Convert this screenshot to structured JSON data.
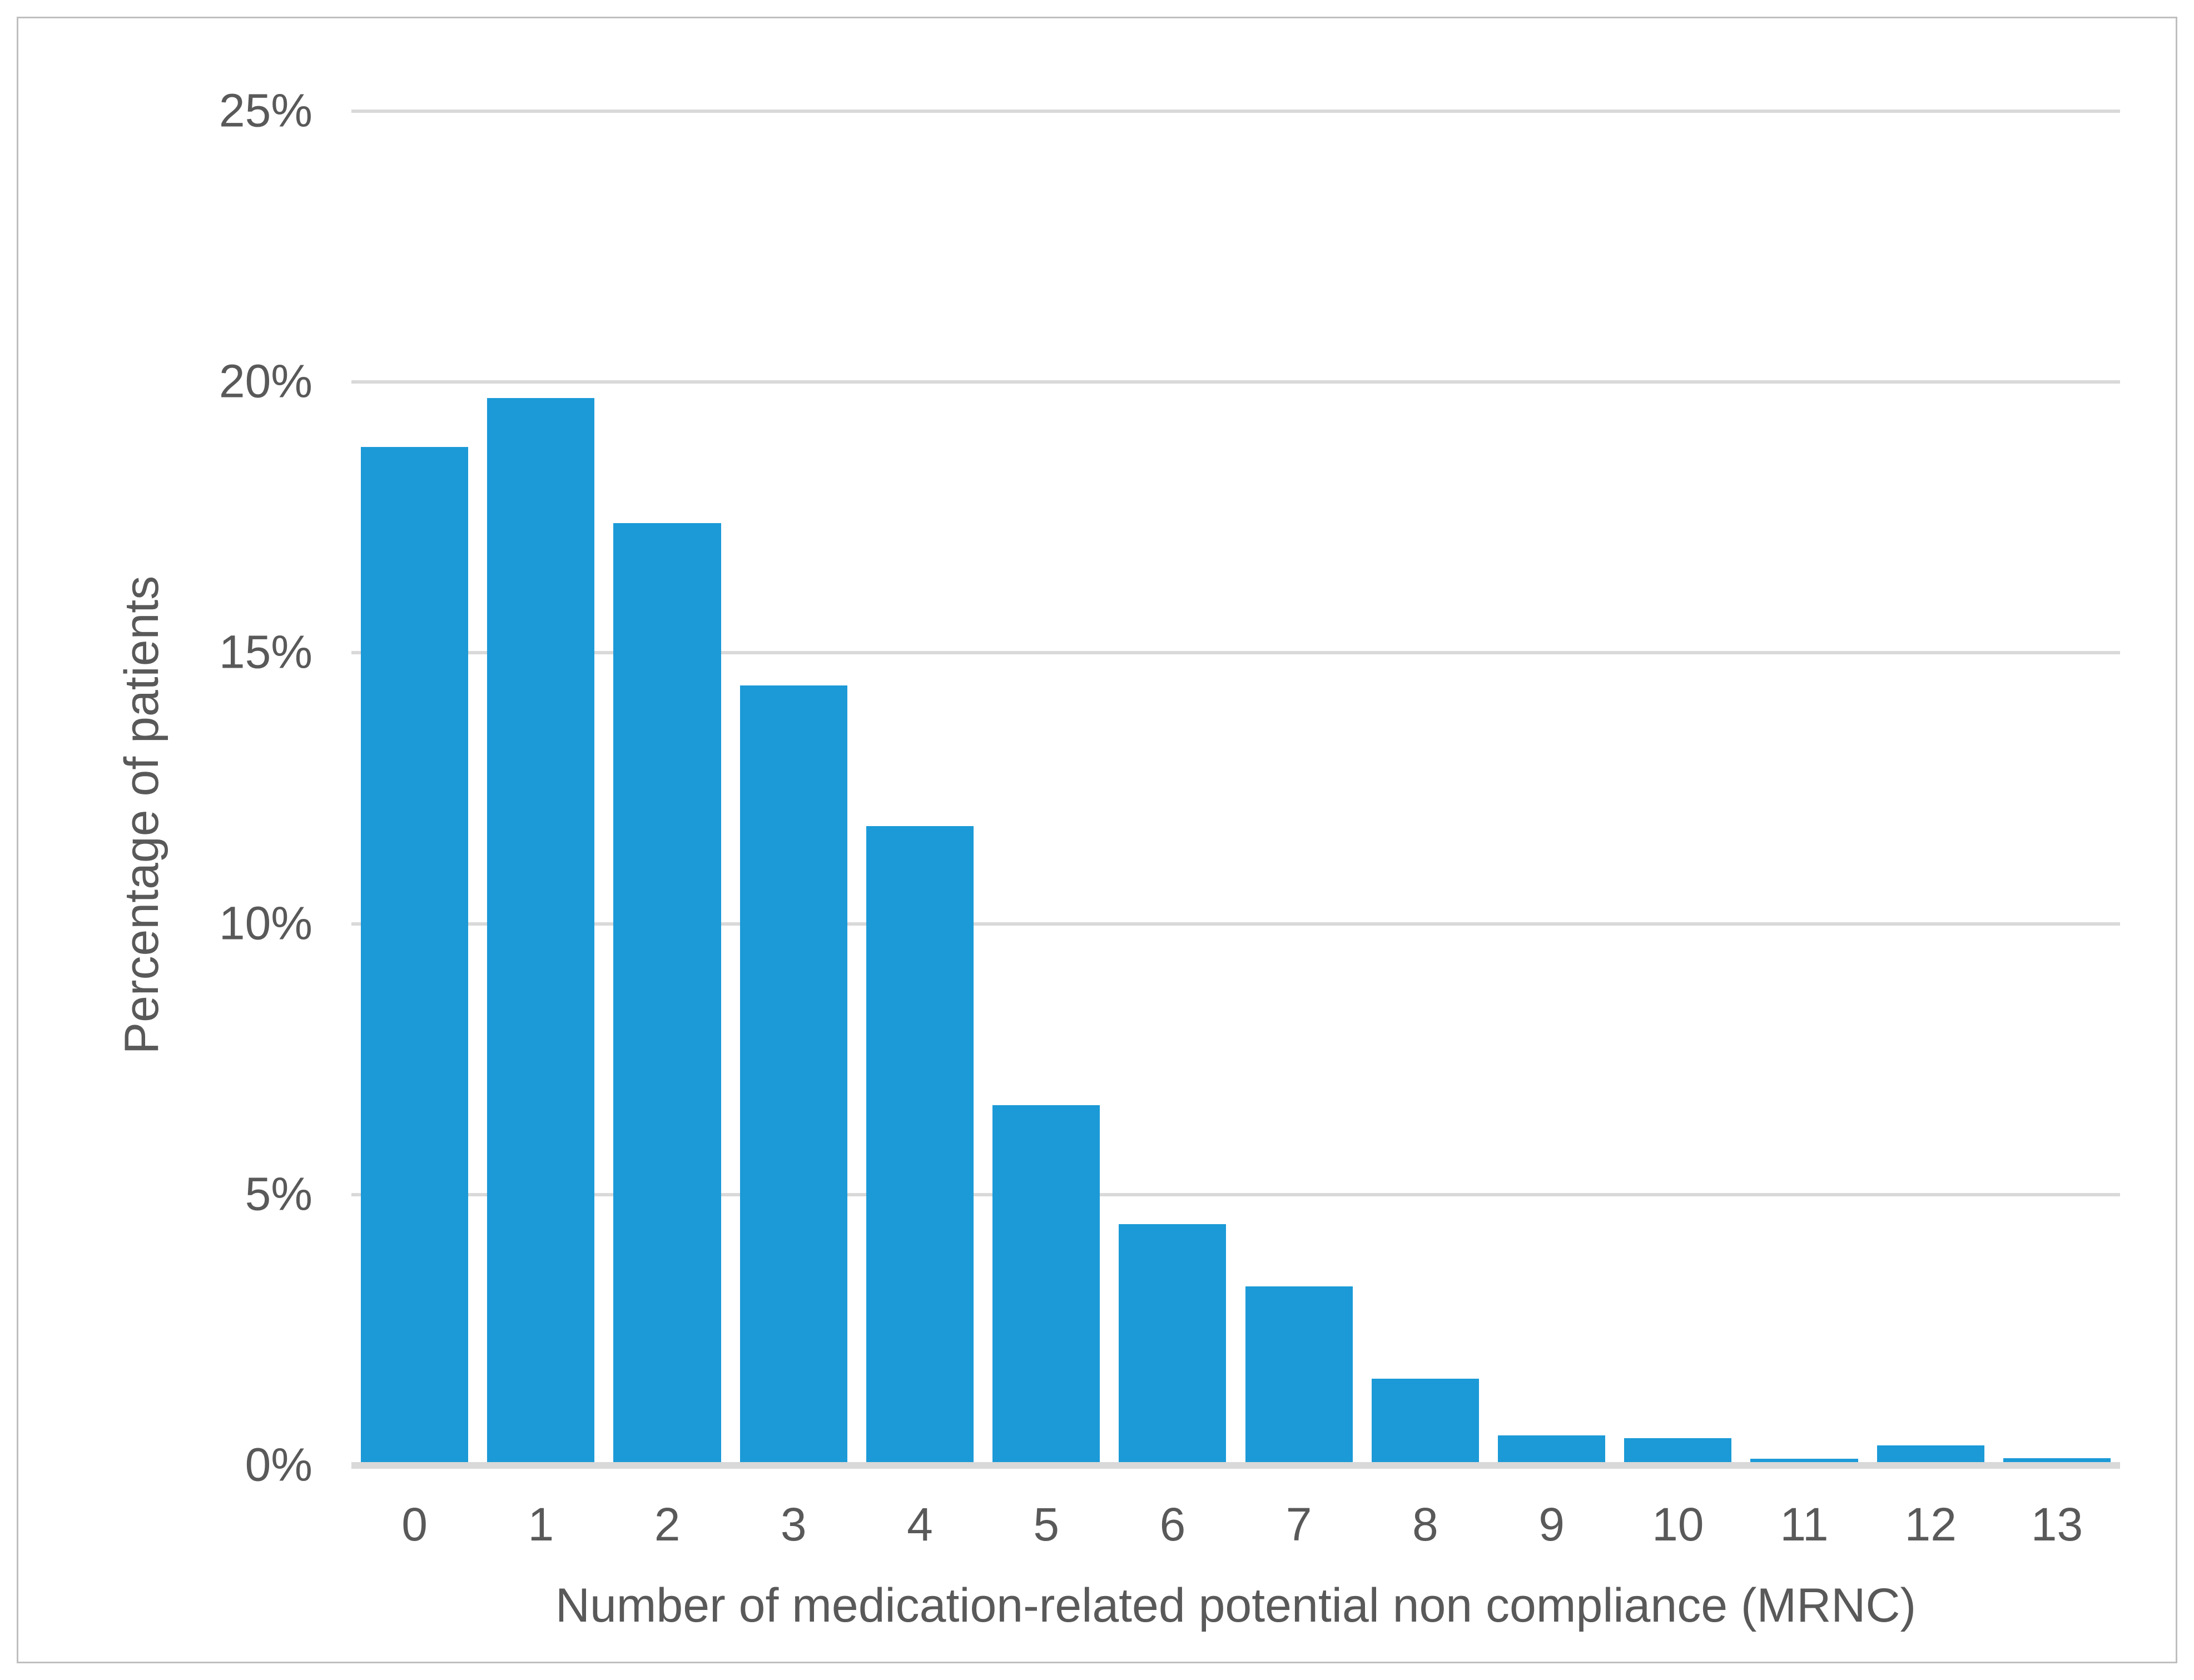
{
  "figure": {
    "background_color": "#FFFFFF",
    "border_color": "#BFBFBF"
  },
  "chart_data": {
    "type": "bar",
    "title": "",
    "xlabel": "Number of medication-related potential non compliance (MRNC)",
    "ylabel": "Percentage of patients",
    "categories": [
      "0",
      "1",
      "2",
      "3",
      "4",
      "5",
      "6",
      "7",
      "8",
      "9",
      "10",
      "11",
      "12",
      "13"
    ],
    "values": [
      18.8,
      19.7,
      17.4,
      14.4,
      11.8,
      6.65,
      4.45,
      3.3,
      1.6,
      0.55,
      0.5,
      0.12,
      0.37,
      0.13
    ],
    "unit": "%",
    "ylim": [
      0,
      25
    ],
    "yticks": [
      {
        "value": 0,
        "label": "0%"
      },
      {
        "value": 5,
        "label": "5%"
      },
      {
        "value": 10,
        "label": "10%"
      },
      {
        "value": 15,
        "label": "15%"
      },
      {
        "value": 20,
        "label": "20%"
      },
      {
        "value": 25,
        "label": "25%"
      }
    ],
    "grid": "horizontal",
    "legend": "none",
    "bar_color": "#1B9AD7",
    "gridline_color": "#D9D9D9",
    "axis_line_color": "#D9D9D9",
    "label_color": "#595959"
  }
}
